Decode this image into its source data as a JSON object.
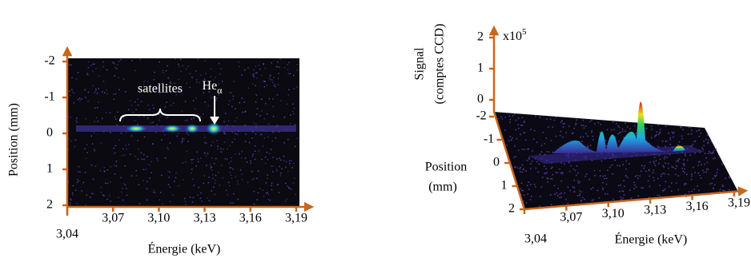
{
  "left_panel": {
    "y_label": "Position (mm)",
    "y_ticks": [
      "-2",
      "-1",
      "0",
      "1",
      "2"
    ],
    "x_ticks": [
      "3,04",
      "3,07",
      "3,10",
      "3,13",
      "3,16",
      "3,19"
    ],
    "x_label": "Énergie (keV)",
    "annotation_satellites": "satellites",
    "annotation_line": "He",
    "annotation_line_sub": "α"
  },
  "right_panel": {
    "z_label_line1": "Signal",
    "z_label_line2": "(comptes CCD)",
    "z_ticks": [
      "2",
      "1",
      "0"
    ],
    "z_multiplier": "x10",
    "z_exponent": "5",
    "y_label_line1": "Position",
    "y_label_line2": "(mm)",
    "y_ticks": [
      "-2",
      "-1",
      "0",
      "1",
      "2"
    ],
    "x_ticks": [
      "3,04",
      "3,07",
      "3,10",
      "3,13",
      "3,16",
      "3,19"
    ],
    "x_label": "Énergie (keV)"
  }
}
